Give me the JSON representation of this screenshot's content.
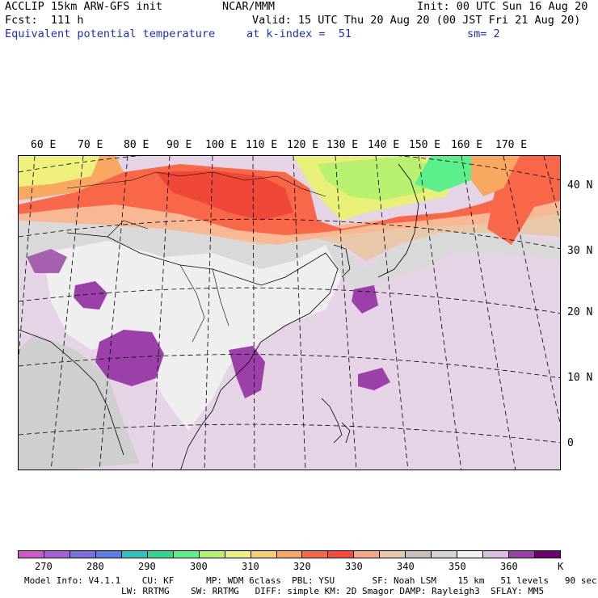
{
  "header": {
    "model_title": "ACCLIP 15km ARW-GFS init",
    "forecast": "Fcst:  111 h",
    "field_name": "Equivalent potential temperature",
    "center": "NCAR/MMM",
    "init_time": "Init: 00 UTC Sun 16 Aug 20",
    "valid_time": "Valid: 15 UTC Thu 20 Aug 20 (00 JST Fri 21 Aug 20)",
    "level": "at k-index =  51",
    "smoothing": "sm= 2"
  },
  "map": {
    "longitude_labels": [
      "60 E",
      "70 E",
      "80 E",
      "90 E",
      "100 E",
      "110 E",
      "120 E",
      "130 E",
      "140 E",
      "150 E",
      "160 E",
      "170 E"
    ],
    "latitude_labels": [
      "40 N",
      "30 N",
      "20 N",
      "10 N",
      "0"
    ]
  },
  "colorbar": {
    "colors": [
      "#d158c8",
      "#a660d8",
      "#7b6ee0",
      "#5b7fe4",
      "#2ec3c0",
      "#2ed890",
      "#5cf08c",
      "#b8f070",
      "#f0f07c",
      "#f8d070",
      "#f8a860",
      "#f86848",
      "#f84838",
      "#f8a888",
      "#e8c8a8",
      "#c8c0b8",
      "#d4d4d4",
      "#f0f0f0",
      "#dcc0e0",
      "#9b40a8",
      "#6e006e"
    ],
    "tick_labels": [
      "270",
      "280",
      "290",
      "300",
      "310",
      "320",
      "330",
      "340",
      "350",
      "360"
    ],
    "unit": "K"
  },
  "footer": {
    "line1": "Model Info: V4.1.1    CU: KF      MP: WDM 6class  PBL: YSU       SF: Noah LSM    15 km   51 levels   90 sec",
    "line2": "LW: RRTMG    SW: RRTMG   DIFF: simple KM: 2D Smagor DAMP: Rayleigh3  SFLAY: MM5"
  }
}
